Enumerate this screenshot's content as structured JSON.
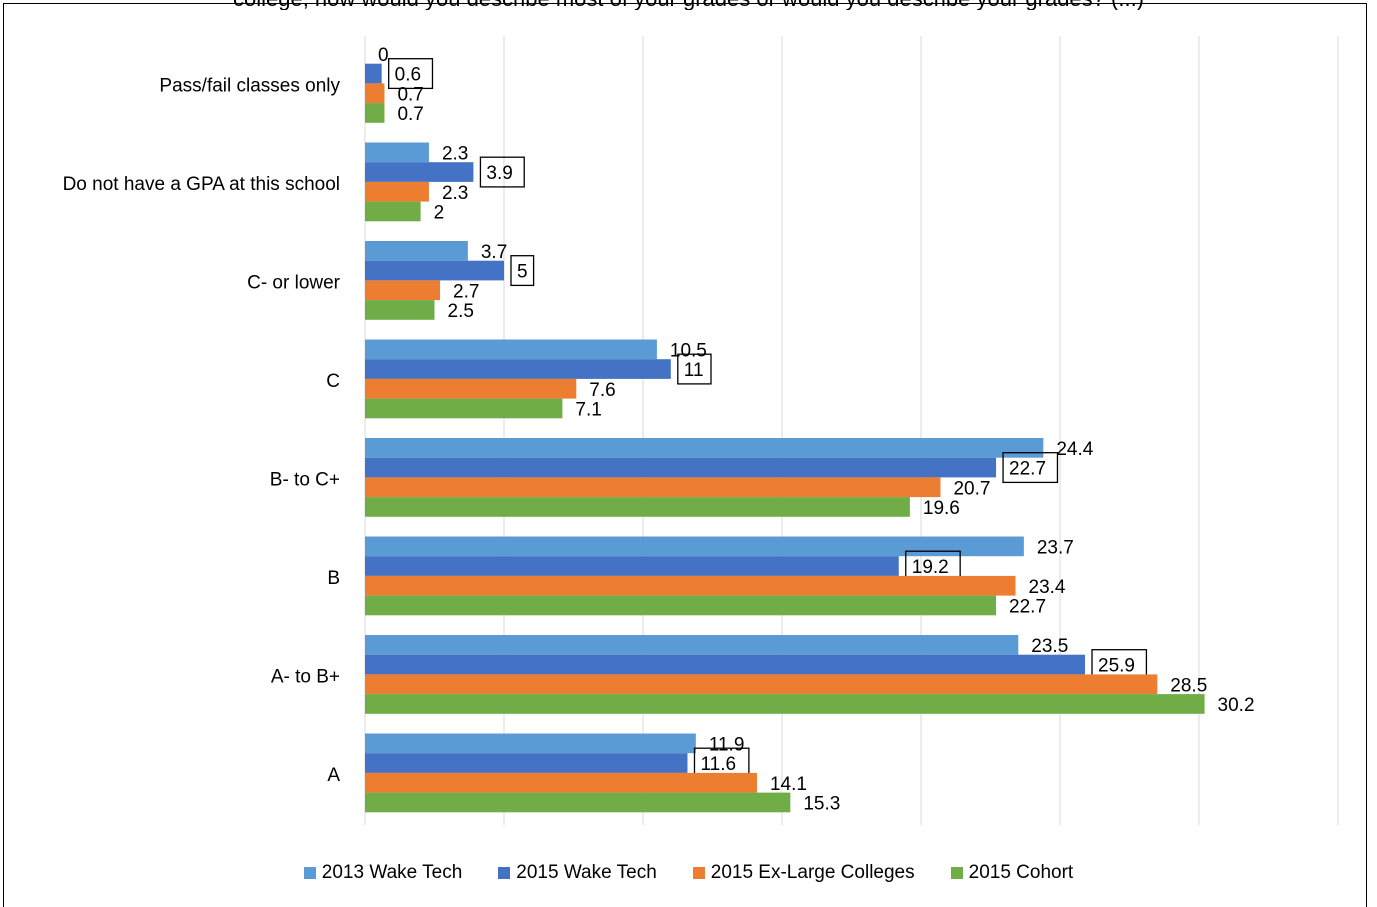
{
  "chart_data": {
    "type": "bar",
    "orientation": "horizontal",
    "title": "college, how would you describe most of your grades or would you describe your grades? (...)",
    "categories": [
      "Pass/fail classes only",
      "Do not have a GPA at this school",
      "C- or lower",
      "C",
      "B- to C+",
      "B",
      "A- to B+",
      "A"
    ],
    "series": [
      {
        "name": "2013 Wake Tech",
        "color": "#5b9bd5",
        "values": [
          0,
          2.3,
          3.7,
          10.5,
          24.4,
          23.7,
          23.5,
          11.9
        ],
        "boxed": false
      },
      {
        "name": "2015 Wake Tech",
        "color": "#4472c4",
        "values": [
          0.6,
          3.9,
          5,
          11,
          22.7,
          19.2,
          25.9,
          11.6
        ],
        "boxed": true
      },
      {
        "name": "2015 Ex-Large Colleges",
        "color": "#ed7d31",
        "values": [
          0.7,
          2.3,
          2.7,
          7.6,
          20.7,
          23.4,
          28.5,
          14.1
        ],
        "boxed": false
      },
      {
        "name": "2015 Cohort",
        "color": "#70ad47",
        "values": [
          0.7,
          2,
          2.5,
          7.1,
          19.6,
          22.7,
          30.2,
          15.3
        ],
        "boxed": false
      }
    ],
    "xlim": [
      0,
      35
    ],
    "grid": true,
    "legend_position": "bottom"
  }
}
